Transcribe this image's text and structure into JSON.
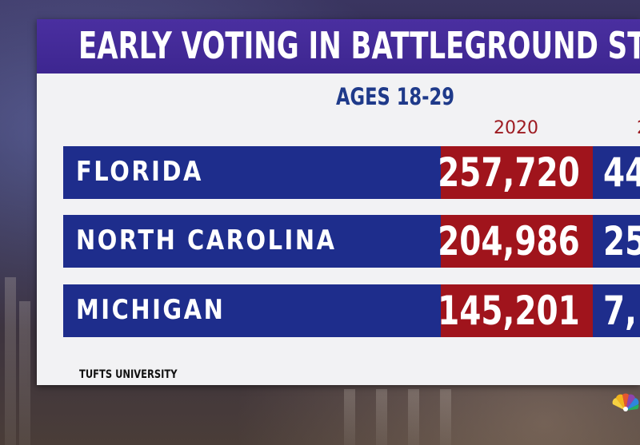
{
  "graphic": {
    "title": "EARLY VOTING IN BATTLEGROUND ST",
    "subtitle": "AGES 18-29",
    "columns": [
      "2020",
      "2"
    ],
    "rows": [
      {
        "state": "FLORIDA",
        "value_2020": "257,720",
        "value_next": "44"
      },
      {
        "state": "NORTH CAROLINA",
        "value_2020": "204,986",
        "value_next": "25"
      },
      {
        "state": "MICHIGAN",
        "value_2020": "145,201",
        "value_next": "7,"
      }
    ],
    "source": "TUFTS UNIVERSITY"
  },
  "colors": {
    "header": "#4a2fa0",
    "row_blue": "#1e2d8c",
    "value_red": "#a0141c",
    "subtitle_blue": "#1f3a8a",
    "year_red": "#9e1c22",
    "panel": "#f2f2f4"
  },
  "icons": {
    "network_logo": "peacock-icon"
  }
}
